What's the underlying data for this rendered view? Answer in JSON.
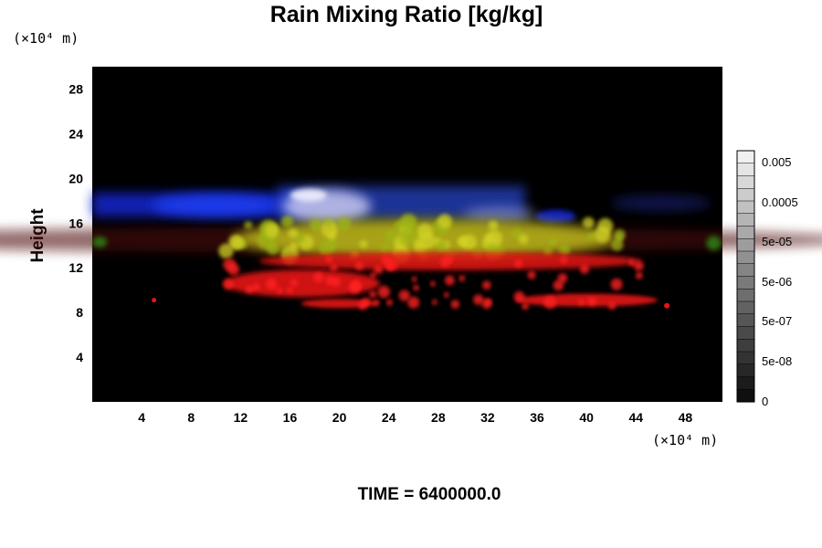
{
  "chart_data": {
    "type": "heatmap",
    "title": "Rain Mixing Ratio [kg/kg]",
    "ylabel": "Height",
    "y_unit": "(×10⁴ m)",
    "x_unit": "(×10⁴ m)",
    "x_ticks": [
      4,
      8,
      12,
      16,
      20,
      24,
      28,
      32,
      36,
      40,
      44,
      48
    ],
    "y_ticks": [
      4,
      8,
      12,
      16,
      20,
      24,
      28
    ],
    "xlim": [
      0,
      51
    ],
    "ylim": [
      0,
      30
    ],
    "colorbar": {
      "labels": [
        "0.005",
        "0.0005",
        "5e-05",
        "5e-06",
        "5e-07",
        "5e-08",
        "0"
      ],
      "levels": 20
    },
    "features": [
      {
        "color": "#1428d2",
        "x_range": [
          0,
          51
        ],
        "y_range": [
          16.5,
          19
        ],
        "label": "blue band"
      },
      {
        "color": "#d7d7f0",
        "x_range": [
          15,
          24
        ],
        "y_range": [
          15.5,
          19.5
        ],
        "label": "white patch"
      },
      {
        "color": "#c8c81e",
        "x_range": [
          8,
          45
        ],
        "y_range": [
          12.5,
          16.5
        ],
        "label": "yellow band"
      },
      {
        "color": "#e61414",
        "x_range": [
          4,
          47
        ],
        "y_range": [
          8.3,
          13.5
        ],
        "label": "red band"
      }
    ],
    "footer": "TIME = 6400000.0"
  },
  "colors": {
    "background": "#000000",
    "blue": "#1428d2",
    "yellow": "#c8c81e",
    "red": "#e61414",
    "green": "#2e8a14"
  }
}
